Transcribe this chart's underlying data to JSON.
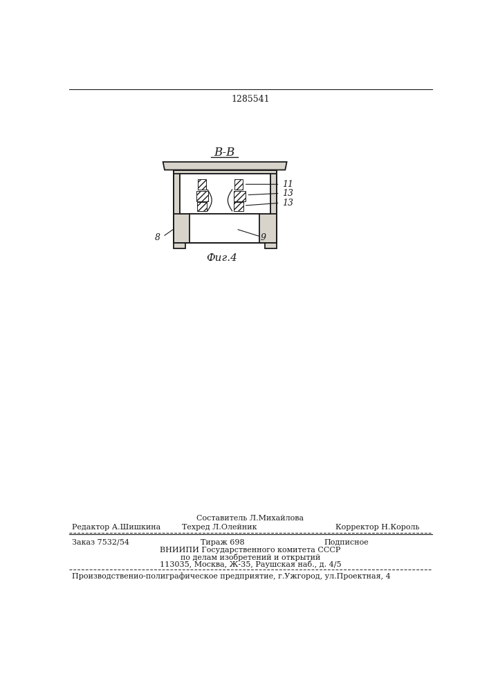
{
  "patent_number": "1285541",
  "section_label": "B-B",
  "fig_label": "Фиг.4",
  "background_color": "#ffffff",
  "line_color": "#1a1a1a",
  "footer_line1": "Составитель Л.Михайлова",
  "footer_line2_left": "Редактор А.Шишкина",
  "footer_line2_mid": "Техред Л.Олейник",
  "footer_line2_right": "Корректор Н.Король",
  "footer_line3_left": "Заказ 7532/54",
  "footer_line3_mid": "Тираж 698",
  "footer_line3_right": "Подписное",
  "footer_line4": "ВНИИПИ Государственного комитета СССР",
  "footer_line5": "по делам изобретений и открытий",
  "footer_line6": "113035, Москва, Ж-35, Раушская наб., д. 4/5",
  "footer_last": "Производственио-полиграфическое предприятие, г.Ужгород, ул.Проектная, 4"
}
